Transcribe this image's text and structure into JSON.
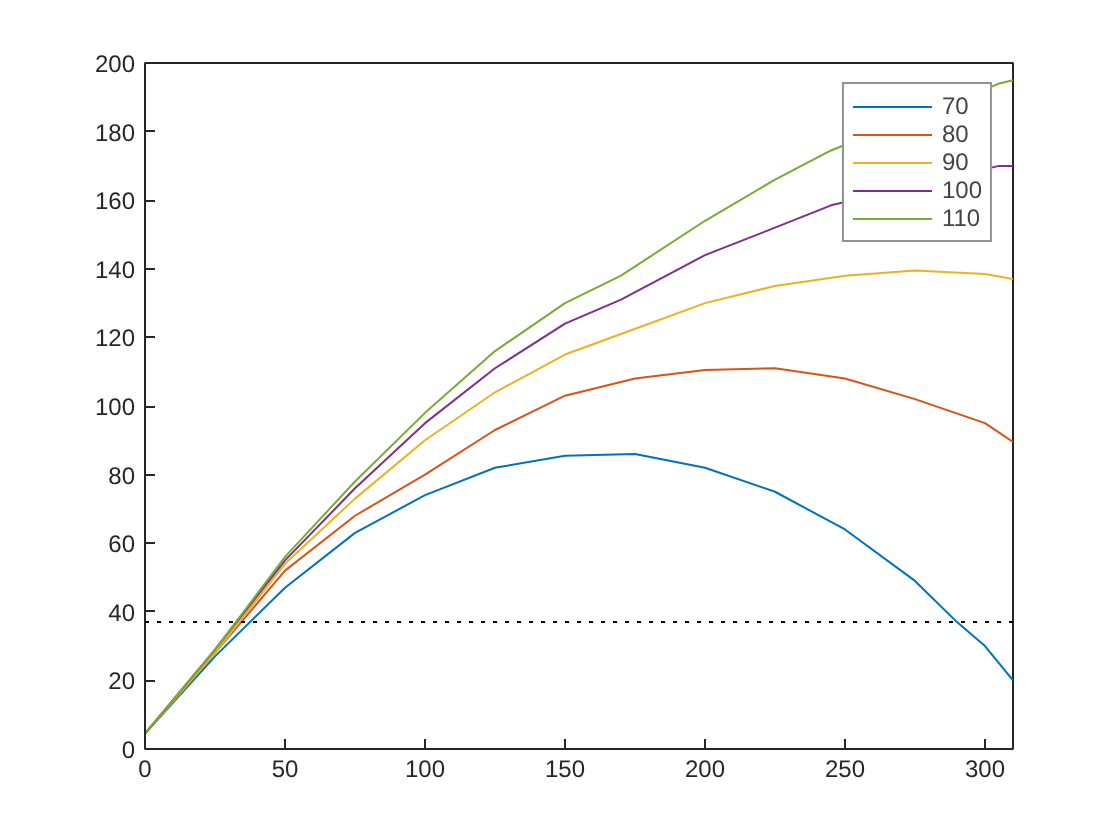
{
  "chart_data": {
    "type": "line",
    "xlim": [
      0,
      310
    ],
    "ylim": [
      0,
      200
    ],
    "xticks": [
      0,
      50,
      100,
      150,
      200,
      250,
      300
    ],
    "yticks": [
      0,
      20,
      40,
      60,
      80,
      100,
      120,
      140,
      160,
      180,
      200
    ],
    "grid": false,
    "legend": "top right",
    "line_style": "solid",
    "ref_lines": [
      {
        "axis": "y",
        "value": 37,
        "color": "#000000",
        "line_style": "dotted"
      }
    ],
    "series": [
      {
        "name": "70",
        "color": "#0072bd",
        "x": [
          0,
          25,
          50,
          75,
          100,
          125,
          150,
          175,
          200,
          225,
          250,
          275,
          290,
          300,
          310
        ],
        "values": [
          4.5,
          27,
          47,
          63,
          74,
          82,
          85.5,
          86,
          82,
          75,
          64,
          49,
          37,
          30,
          20
        ]
      },
      {
        "name": "80",
        "color": "#d95319",
        "x": [
          0,
          25,
          50,
          75,
          100,
          125,
          150,
          175,
          200,
          225,
          250,
          275,
          300,
          310
        ],
        "values": [
          4.5,
          28,
          52,
          68,
          80,
          93,
          103,
          108,
          110.5,
          111,
          108,
          102,
          95,
          89.5
        ]
      },
      {
        "name": "90",
        "color": "#edb120",
        "x": [
          0,
          25,
          50,
          75,
          100,
          125,
          150,
          170,
          200,
          225,
          250,
          275,
          300,
          310
        ],
        "values": [
          4.5,
          28,
          54,
          73,
          90,
          104,
          115,
          121,
          130,
          135,
          138,
          139.5,
          138.5,
          137
        ]
      },
      {
        "name": "100",
        "color": "#7e2f8e",
        "x": [
          0,
          25,
          50,
          75,
          100,
          125,
          150,
          170,
          200,
          225,
          245,
          305,
          310
        ],
        "values": [
          4.5,
          29,
          55,
          76,
          95,
          111,
          124,
          131,
          144,
          152,
          158.5,
          170,
          170
        ]
      },
      {
        "name": "110",
        "color": "#77ac30",
        "x": [
          0,
          25,
          50,
          75,
          100,
          125,
          150,
          170,
          200,
          225,
          245,
          305,
          310
        ],
        "values": [
          4.5,
          29,
          56,
          78,
          98,
          116,
          130,
          138,
          154,
          166,
          174.5,
          194,
          195
        ]
      }
    ]
  }
}
